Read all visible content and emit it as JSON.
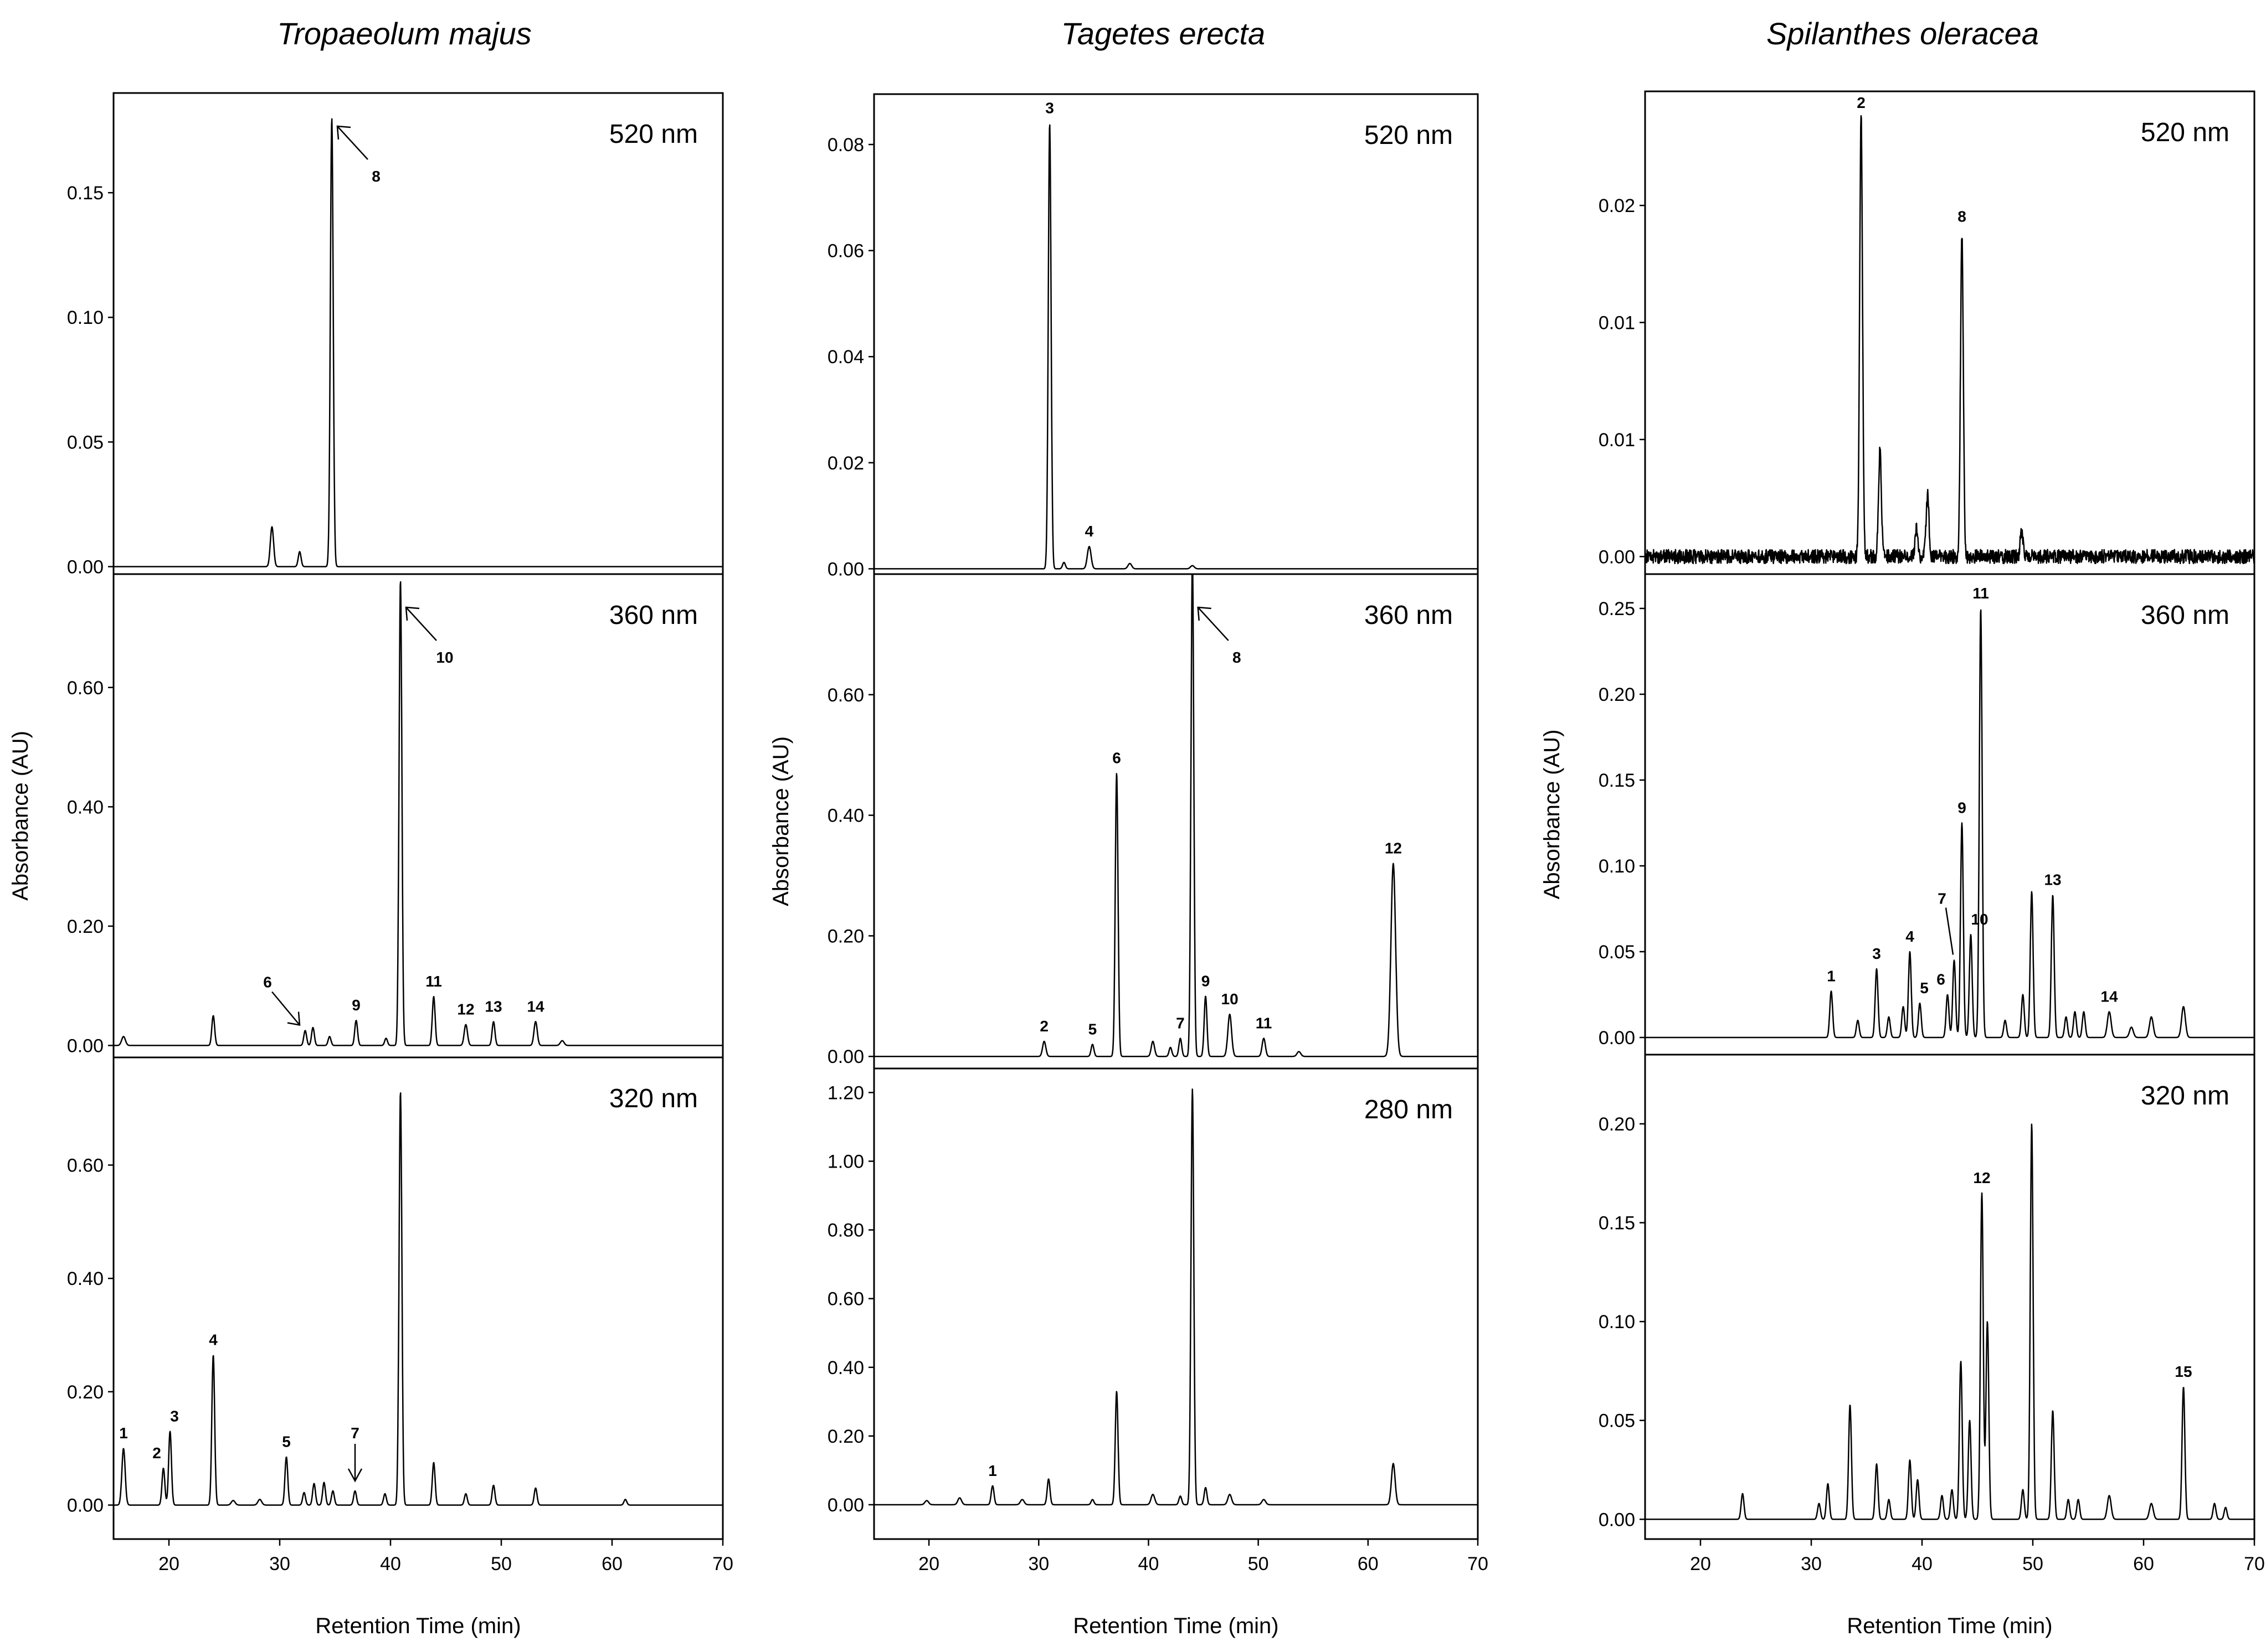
{
  "species": [
    "Tropaeolum majus",
    "Tagetes erecta",
    "Spilanthes oleracea"
  ],
  "shared": {
    "x_axis_label": "Retention Time (min)",
    "y_axis_label": "Absorbance (AU)",
    "x_ticks": [
      20,
      30,
      40,
      50,
      60,
      70
    ],
    "x_range": [
      15,
      70
    ]
  },
  "chart_data": [
    {
      "type": "line",
      "column": "Tropaeolum majus",
      "wavelength": "520 nm",
      "y_ticks": [
        "0.00",
        "0.05",
        "0.10",
        "0.15"
      ],
      "y_range": [
        -0.003,
        0.19
      ],
      "peaks": [
        {
          "rt": 29.3,
          "height": 0.016,
          "width": 0.35
        },
        {
          "rt": 31.8,
          "height": 0.006,
          "width": 0.3
        },
        {
          "rt": 34.7,
          "height": 0.18,
          "width": 0.3,
          "label": "8",
          "arrow": true
        }
      ]
    },
    {
      "type": "line",
      "column": "Tropaeolum majus",
      "wavelength": "360 nm",
      "y_ticks": [
        "0.00",
        "0.20",
        "0.40",
        "0.60"
      ],
      "y_range": [
        -0.02,
        0.79
      ],
      "peaks": [
        {
          "rt": 15.9,
          "height": 0.015,
          "width": 0.4
        },
        {
          "rt": 24.0,
          "height": 0.05,
          "width": 0.3
        },
        {
          "rt": 32.3,
          "height": 0.025,
          "width": 0.3,
          "label": "6",
          "arrow": true
        },
        {
          "rt": 33.0,
          "height": 0.03,
          "width": 0.3
        },
        {
          "rt": 34.5,
          "height": 0.015,
          "width": 0.3
        },
        {
          "rt": 36.9,
          "height": 0.042,
          "width": 0.3,
          "label": "9"
        },
        {
          "rt": 39.6,
          "height": 0.012,
          "width": 0.3
        },
        {
          "rt": 40.9,
          "height": 0.78,
          "width": 0.3,
          "label": "10",
          "arrow": true
        },
        {
          "rt": 43.9,
          "height": 0.082,
          "width": 0.3,
          "label": "11"
        },
        {
          "rt": 46.8,
          "height": 0.035,
          "width": 0.35,
          "label": "12"
        },
        {
          "rt": 49.3,
          "height": 0.04,
          "width": 0.3,
          "label": "13"
        },
        {
          "rt": 53.1,
          "height": 0.04,
          "width": 0.35,
          "label": "14"
        },
        {
          "rt": 55.5,
          "height": 0.008,
          "width": 0.4
        }
      ]
    },
    {
      "type": "line",
      "column": "Tropaeolum majus",
      "wavelength": "320 nm",
      "y_ticks": [
        "0.00",
        "0.20",
        "0.40",
        "0.60"
      ],
      "y_range": [
        -0.06,
        0.79
      ],
      "peaks": [
        {
          "rt": 15.9,
          "height": 0.1,
          "width": 0.35,
          "label": "1"
        },
        {
          "rt": 19.5,
          "height": 0.065,
          "width": 0.3,
          "label": "2"
        },
        {
          "rt": 20.1,
          "height": 0.13,
          "width": 0.3,
          "label": "3"
        },
        {
          "rt": 24.0,
          "height": 0.265,
          "width": 0.3,
          "label": "4"
        },
        {
          "rt": 25.8,
          "height": 0.008,
          "width": 0.4
        },
        {
          "rt": 28.2,
          "height": 0.01,
          "width": 0.4
        },
        {
          "rt": 30.6,
          "height": 0.085,
          "width": 0.3,
          "label": "5"
        },
        {
          "rt": 32.2,
          "height": 0.022,
          "width": 0.3
        },
        {
          "rt": 33.1,
          "height": 0.038,
          "width": 0.3
        },
        {
          "rt": 34.0,
          "height": 0.04,
          "width": 0.3
        },
        {
          "rt": 34.8,
          "height": 0.025,
          "width": 0.3
        },
        {
          "rt": 36.8,
          "height": 0.025,
          "width": 0.3,
          "label": "7",
          "arrow": true
        },
        {
          "rt": 39.5,
          "height": 0.02,
          "width": 0.3
        },
        {
          "rt": 40.9,
          "height": 0.73,
          "width": 0.3
        },
        {
          "rt": 43.9,
          "height": 0.075,
          "width": 0.3
        },
        {
          "rt": 46.8,
          "height": 0.02,
          "width": 0.3
        },
        {
          "rt": 49.3,
          "height": 0.035,
          "width": 0.3
        },
        {
          "rt": 53.1,
          "height": 0.03,
          "width": 0.3
        },
        {
          "rt": 61.2,
          "height": 0.01,
          "width": 0.3
        }
      ]
    },
    {
      "type": "line",
      "column": "Tagetes erecta",
      "wavelength": "520 nm",
      "y_ticks": [
        "0.00",
        "0.02",
        "0.04",
        "0.06",
        "0.08"
      ],
      "y_range": [
        -0.001,
        0.0895
      ],
      "peaks": [
        {
          "rt": 31.0,
          "height": 0.084,
          "width": 0.3,
          "label": "3"
        },
        {
          "rt": 32.3,
          "height": 0.0012,
          "width": 0.3
        },
        {
          "rt": 34.6,
          "height": 0.0042,
          "width": 0.4,
          "label": "4"
        },
        {
          "rt": 38.3,
          "height": 0.001,
          "width": 0.4
        },
        {
          "rt": 44.0,
          "height": 0.0006,
          "width": 0.4
        }
      ]
    },
    {
      "type": "line",
      "column": "Tagetes erecta",
      "wavelength": "360 nm",
      "y_ticks": [
        "0.00",
        "0.20",
        "0.40",
        "0.60"
      ],
      "y_range": [
        -0.02,
        0.8
      ],
      "peaks": [
        {
          "rt": 30.5,
          "height": 0.025,
          "width": 0.35,
          "label": "2"
        },
        {
          "rt": 34.9,
          "height": 0.02,
          "width": 0.3,
          "label": "5"
        },
        {
          "rt": 37.1,
          "height": 0.47,
          "width": 0.3,
          "label": "6"
        },
        {
          "rt": 40.4,
          "height": 0.025,
          "width": 0.35
        },
        {
          "rt": 42.0,
          "height": 0.015,
          "width": 0.3
        },
        {
          "rt": 42.9,
          "height": 0.03,
          "width": 0.3,
          "label": "7"
        },
        {
          "rt": 44.0,
          "height": 0.83,
          "width": 0.3,
          "label": "8",
          "arrow": true
        },
        {
          "rt": 45.2,
          "height": 0.1,
          "width": 0.3,
          "label": "9"
        },
        {
          "rt": 47.4,
          "height": 0.07,
          "width": 0.4,
          "label": "10"
        },
        {
          "rt": 50.5,
          "height": 0.03,
          "width": 0.35,
          "label": "11"
        },
        {
          "rt": 53.7,
          "height": 0.008,
          "width": 0.4
        },
        {
          "rt": 62.3,
          "height": 0.32,
          "width": 0.5,
          "label": "12"
        }
      ]
    },
    {
      "type": "line",
      "column": "Tagetes erecta",
      "wavelength": "280 nm",
      "y_ticks": [
        "0.00",
        "0.20",
        "0.40",
        "0.60",
        "0.80",
        "1.00",
        "1.20"
      ],
      "y_range": [
        -0.1,
        1.27
      ],
      "peaks": [
        {
          "rt": 19.8,
          "height": 0.012,
          "width": 0.4
        },
        {
          "rt": 22.8,
          "height": 0.02,
          "width": 0.4
        },
        {
          "rt": 25.8,
          "height": 0.055,
          "width": 0.3,
          "label": "1"
        },
        {
          "rt": 28.5,
          "height": 0.015,
          "width": 0.4
        },
        {
          "rt": 30.9,
          "height": 0.075,
          "width": 0.3
        },
        {
          "rt": 34.9,
          "height": 0.015,
          "width": 0.3
        },
        {
          "rt": 37.1,
          "height": 0.33,
          "width": 0.3
        },
        {
          "rt": 40.4,
          "height": 0.03,
          "width": 0.4
        },
        {
          "rt": 42.9,
          "height": 0.025,
          "width": 0.3
        },
        {
          "rt": 44.0,
          "height": 1.21,
          "width": 0.3
        },
        {
          "rt": 45.2,
          "height": 0.05,
          "width": 0.3
        },
        {
          "rt": 47.4,
          "height": 0.03,
          "width": 0.4
        },
        {
          "rt": 50.5,
          "height": 0.015,
          "width": 0.4
        },
        {
          "rt": 62.3,
          "height": 0.12,
          "width": 0.4
        }
      ]
    },
    {
      "type": "line",
      "column": "Spilanthes oleracea",
      "wavelength": "520 nm",
      "y_ticks": [
        "0.00",
        "0.01",
        "0.01",
        "0.02"
      ],
      "y_range": [
        -0.001,
        0.0265
      ],
      "noise": 0.0004,
      "peaks": [
        {
          "rt": 34.5,
          "height": 0.0252,
          "width": 0.3,
          "label": "2"
        },
        {
          "rt": 36.2,
          "height": 0.006,
          "width": 0.3
        },
        {
          "rt": 39.5,
          "height": 0.0015,
          "width": 0.3
        },
        {
          "rt": 40.5,
          "height": 0.0035,
          "width": 0.3
        },
        {
          "rt": 43.6,
          "height": 0.0185,
          "width": 0.3,
          "label": "8"
        },
        {
          "rt": 49.0,
          "height": 0.0015,
          "width": 0.3
        }
      ]
    },
    {
      "type": "line",
      "column": "Spilanthes oleracea",
      "wavelength": "360 nm",
      "y_ticks": [
        "0.00",
        "0.05",
        "0.10",
        "0.15",
        "0.20",
        "0.25"
      ],
      "y_range": [
        -0.01,
        0.27
      ],
      "peaks": [
        {
          "rt": 31.8,
          "height": 0.027,
          "width": 0.3,
          "label": "1"
        },
        {
          "rt": 34.2,
          "height": 0.01,
          "width": 0.3
        },
        {
          "rt": 35.9,
          "height": 0.04,
          "width": 0.3,
          "label": "3"
        },
        {
          "rt": 37.0,
          "height": 0.012,
          "width": 0.3
        },
        {
          "rt": 38.3,
          "height": 0.018,
          "width": 0.3
        },
        {
          "rt": 38.9,
          "height": 0.05,
          "width": 0.3,
          "label": "4"
        },
        {
          "rt": 39.8,
          "height": 0.02,
          "width": 0.3,
          "label": "5"
        },
        {
          "rt": 42.3,
          "height": 0.025,
          "width": 0.3,
          "label": "6"
        },
        {
          "rt": 42.9,
          "height": 0.045,
          "width": 0.3,
          "label": "7",
          "arrow": true
        },
        {
          "rt": 43.6,
          "height": 0.125,
          "width": 0.3,
          "label": "9"
        },
        {
          "rt": 44.4,
          "height": 0.06,
          "width": 0.3,
          "label": "10"
        },
        {
          "rt": 45.3,
          "height": 0.25,
          "width": 0.3,
          "label": "11"
        },
        {
          "rt": 47.5,
          "height": 0.01,
          "width": 0.3
        },
        {
          "rt": 49.1,
          "height": 0.025,
          "width": 0.3
        },
        {
          "rt": 49.9,
          "height": 0.085,
          "width": 0.3
        },
        {
          "rt": 51.8,
          "height": 0.083,
          "width": 0.3,
          "label": "13"
        },
        {
          "rt": 53.0,
          "height": 0.012,
          "width": 0.3
        },
        {
          "rt": 53.8,
          "height": 0.015,
          "width": 0.3
        },
        {
          "rt": 54.6,
          "height": 0.015,
          "width": 0.3
        },
        {
          "rt": 56.9,
          "height": 0.015,
          "width": 0.4,
          "label": "14"
        },
        {
          "rt": 58.9,
          "height": 0.006,
          "width": 0.4
        },
        {
          "rt": 60.7,
          "height": 0.012,
          "width": 0.4
        },
        {
          "rt": 63.6,
          "height": 0.018,
          "width": 0.4
        }
      ]
    },
    {
      "type": "line",
      "column": "Spilanthes oleracea",
      "wavelength": "320 nm",
      "y_ticks": [
        "0.00",
        "0.05",
        "0.10",
        "0.15",
        "0.20"
      ],
      "y_range": [
        -0.01,
        0.235
      ],
      "peaks": [
        {
          "rt": 23.8,
          "height": 0.013,
          "width": 0.3
        },
        {
          "rt": 30.7,
          "height": 0.008,
          "width": 0.3
        },
        {
          "rt": 31.5,
          "height": 0.018,
          "width": 0.3
        },
        {
          "rt": 33.5,
          "height": 0.058,
          "width": 0.3
        },
        {
          "rt": 35.9,
          "height": 0.028,
          "width": 0.3
        },
        {
          "rt": 37.0,
          "height": 0.01,
          "width": 0.3
        },
        {
          "rt": 38.9,
          "height": 0.03,
          "width": 0.3
        },
        {
          "rt": 39.6,
          "height": 0.02,
          "width": 0.3
        },
        {
          "rt": 41.8,
          "height": 0.012,
          "width": 0.3
        },
        {
          "rt": 42.7,
          "height": 0.015,
          "width": 0.3
        },
        {
          "rt": 43.5,
          "height": 0.08,
          "width": 0.3
        },
        {
          "rt": 44.3,
          "height": 0.05,
          "width": 0.3
        },
        {
          "rt": 45.4,
          "height": 0.165,
          "width": 0.3,
          "label": "12"
        },
        {
          "rt": 45.9,
          "height": 0.1,
          "width": 0.3
        },
        {
          "rt": 49.1,
          "height": 0.015,
          "width": 0.3
        },
        {
          "rt": 49.9,
          "height": 0.2,
          "width": 0.3
        },
        {
          "rt": 51.8,
          "height": 0.055,
          "width": 0.3
        },
        {
          "rt": 53.2,
          "height": 0.01,
          "width": 0.3
        },
        {
          "rt": 54.1,
          "height": 0.01,
          "width": 0.3
        },
        {
          "rt": 56.9,
          "height": 0.012,
          "width": 0.4
        },
        {
          "rt": 60.7,
          "height": 0.008,
          "width": 0.4
        },
        {
          "rt": 63.6,
          "height": 0.067,
          "width": 0.3,
          "label": "15"
        },
        {
          "rt": 66.4,
          "height": 0.008,
          "width": 0.3
        },
        {
          "rt": 67.4,
          "height": 0.006,
          "width": 0.3
        }
      ]
    }
  ]
}
